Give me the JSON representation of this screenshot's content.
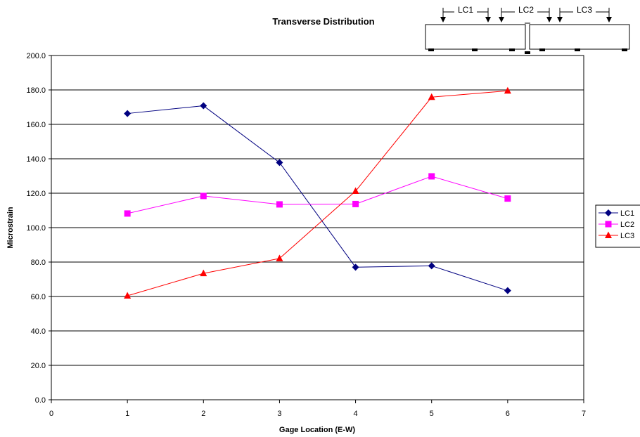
{
  "chart_data": {
    "type": "line",
    "title": "Transverse Distribution",
    "xlabel": "Gage Location (E-W)",
    "ylabel": "Microstrain",
    "xlim": [
      0,
      7
    ],
    "ylim": [
      0,
      200
    ],
    "x_ticks": [
      "0",
      "1",
      "2",
      "3",
      "4",
      "5",
      "6",
      "7"
    ],
    "y_ticks": [
      "0.0",
      "20.0",
      "40.0",
      "60.0",
      "80.0",
      "100.0",
      "120.0",
      "140.0",
      "160.0",
      "180.0",
      "200.0"
    ],
    "grid": "horizontal",
    "legend_position": "right",
    "x": [
      1,
      2,
      3,
      4,
      5,
      6
    ],
    "series": [
      {
        "name": "LC1",
        "color": "#000080",
        "marker": "diamond",
        "values": [
          166.3,
          170.8,
          137.8,
          77.0,
          77.8,
          63.4
        ]
      },
      {
        "name": "LC2",
        "color": "#FF00FF",
        "marker": "square",
        "values": [
          108.2,
          118.4,
          113.5,
          113.7,
          129.8,
          116.9
        ]
      },
      {
        "name": "LC3",
        "color": "#FF0000",
        "marker": "triangle",
        "values": [
          60.4,
          73.4,
          82.1,
          121.2,
          175.8,
          179.5
        ]
      }
    ]
  },
  "diagram": {
    "load_case_labels": [
      "LC1",
      "LC2",
      "LC3"
    ],
    "stroke_color": "#000000"
  }
}
